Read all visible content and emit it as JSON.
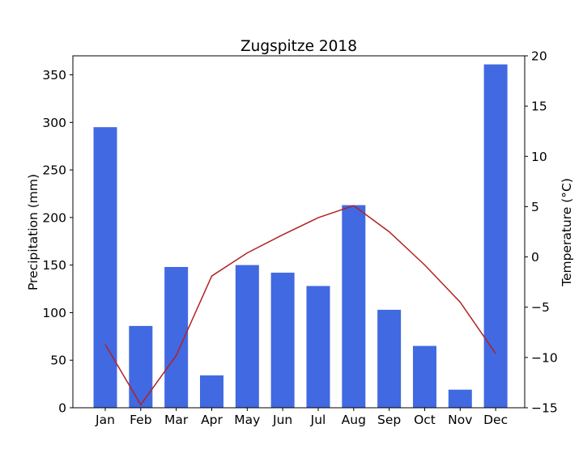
{
  "chart_data": {
    "type": "bar",
    "title": "Zugspitze 2018",
    "categories": [
      "Jan",
      "Feb",
      "Mar",
      "Apr",
      "May",
      "Jun",
      "Jul",
      "Aug",
      "Sep",
      "Oct",
      "Nov",
      "Dec"
    ],
    "series": [
      {
        "type": "bar",
        "axis": "left",
        "color": "#4169e1",
        "values": [
          295,
          86,
          148,
          34,
          150,
          142,
          128,
          213,
          103,
          65,
          19,
          361
        ]
      },
      {
        "type": "line",
        "axis": "right",
        "color": "#b22222",
        "values": [
          -8.7,
          -14.7,
          -9.8,
          -1.9,
          0.4,
          2.2,
          3.9,
          5.1,
          2.5,
          -0.8,
          -4.5,
          -9.6
        ]
      }
    ],
    "ylabel": "Precipitation (mm)",
    "ylim": [
      0,
      370
    ],
    "yticks": [
      0,
      50,
      100,
      150,
      200,
      250,
      300,
      350
    ],
    "y2label": "Temperature (°C)",
    "y2lim": [
      -15,
      20
    ],
    "y2ticks": [
      -15,
      -10,
      -5,
      0,
      5,
      10,
      15,
      20
    ],
    "grid": false,
    "legend": "none"
  }
}
